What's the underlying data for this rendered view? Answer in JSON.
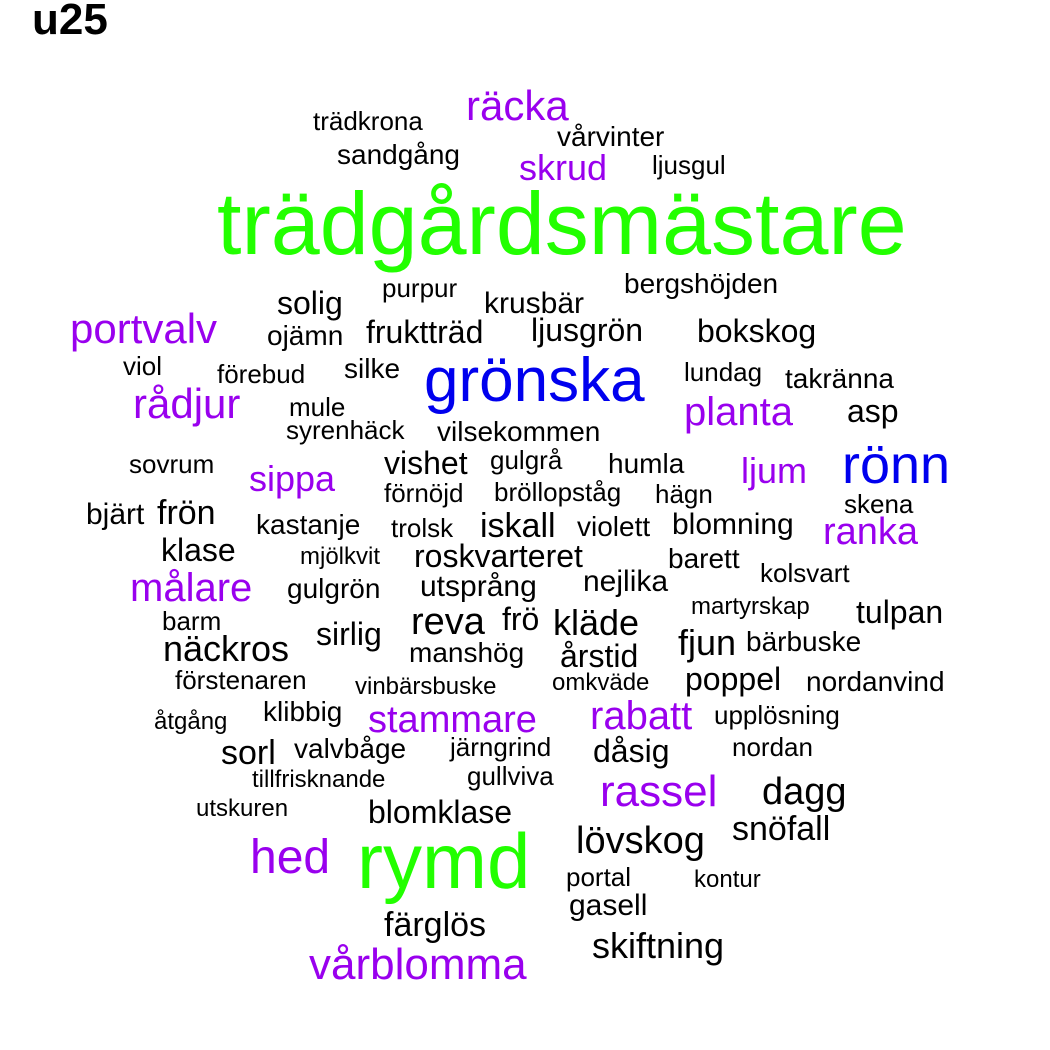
{
  "title": "u25",
  "colors": {
    "green": "#22ff00",
    "blue": "#0000ee",
    "purple": "#9900ee",
    "black": "#000000"
  },
  "words": [
    {
      "text": "trädgårdsmästare",
      "color": "green"
    },
    {
      "text": "rymd",
      "color": "green"
    },
    {
      "text": "grönska",
      "color": "blue"
    },
    {
      "text": "rönn",
      "color": "blue"
    },
    {
      "text": "räcka",
      "color": "purple"
    },
    {
      "text": "skrud",
      "color": "purple"
    },
    {
      "text": "portvalv",
      "color": "purple"
    },
    {
      "text": "rådjur",
      "color": "purple"
    },
    {
      "text": "planta",
      "color": "purple"
    },
    {
      "text": "sippa",
      "color": "purple"
    },
    {
      "text": "ljum",
      "color": "purple"
    },
    {
      "text": "ranka",
      "color": "purple"
    },
    {
      "text": "målare",
      "color": "purple"
    },
    {
      "text": "stammare",
      "color": "purple"
    },
    {
      "text": "rabatt",
      "color": "purple"
    },
    {
      "text": "rassel",
      "color": "purple"
    },
    {
      "text": "hed",
      "color": "purple"
    },
    {
      "text": "vårblomma",
      "color": "purple"
    },
    {
      "text": "trädkrona",
      "color": "black"
    },
    {
      "text": "vårvinter",
      "color": "black"
    },
    {
      "text": "sandgång",
      "color": "black"
    },
    {
      "text": "ljusgul",
      "color": "black"
    },
    {
      "text": "bergshöjden",
      "color": "black"
    },
    {
      "text": "purpur",
      "color": "black"
    },
    {
      "text": "solig",
      "color": "black"
    },
    {
      "text": "krusbär",
      "color": "black"
    },
    {
      "text": "ojämn",
      "color": "black"
    },
    {
      "text": "fruktträd",
      "color": "black"
    },
    {
      "text": "ljusgrön",
      "color": "black"
    },
    {
      "text": "bokskog",
      "color": "black"
    },
    {
      "text": "viol",
      "color": "black"
    },
    {
      "text": "förebud",
      "color": "black"
    },
    {
      "text": "silke",
      "color": "black"
    },
    {
      "text": "lundag",
      "color": "black"
    },
    {
      "text": "takränna",
      "color": "black"
    },
    {
      "text": "mule",
      "color": "black"
    },
    {
      "text": "asp",
      "color": "black"
    },
    {
      "text": "syrenhäck",
      "color": "black"
    },
    {
      "text": "vilsekommen",
      "color": "black"
    },
    {
      "text": "sovrum",
      "color": "black"
    },
    {
      "text": "vishet",
      "color": "black"
    },
    {
      "text": "gulgrå",
      "color": "black"
    },
    {
      "text": "humla",
      "color": "black"
    },
    {
      "text": "förnöjd",
      "color": "black"
    },
    {
      "text": "bröllopståg",
      "color": "black"
    },
    {
      "text": "hägn",
      "color": "black"
    },
    {
      "text": "skena",
      "color": "black"
    },
    {
      "text": "bjärt",
      "color": "black"
    },
    {
      "text": "frön",
      "color": "black"
    },
    {
      "text": "kastanje",
      "color": "black"
    },
    {
      "text": "trolsk",
      "color": "black"
    },
    {
      "text": "iskall",
      "color": "black"
    },
    {
      "text": "violett",
      "color": "black"
    },
    {
      "text": "blomning",
      "color": "black"
    },
    {
      "text": "klase",
      "color": "black"
    },
    {
      "text": "mjölkvit",
      "color": "black"
    },
    {
      "text": "roskvarteret",
      "color": "black"
    },
    {
      "text": "barett",
      "color": "black"
    },
    {
      "text": "kolsvart",
      "color": "black"
    },
    {
      "text": "gulgrön",
      "color": "black"
    },
    {
      "text": "utsprång",
      "color": "black"
    },
    {
      "text": "nejlika",
      "color": "black"
    },
    {
      "text": "martyrskap",
      "color": "black"
    },
    {
      "text": "tulpan",
      "color": "black"
    },
    {
      "text": "barm",
      "color": "black"
    },
    {
      "text": "reva",
      "color": "black"
    },
    {
      "text": "frö",
      "color": "black"
    },
    {
      "text": "kläde",
      "color": "black"
    },
    {
      "text": "sirlig",
      "color": "black"
    },
    {
      "text": "fjun",
      "color": "black"
    },
    {
      "text": "bärbuske",
      "color": "black"
    },
    {
      "text": "näckros",
      "color": "black"
    },
    {
      "text": "manshög",
      "color": "black"
    },
    {
      "text": "årstid",
      "color": "black"
    },
    {
      "text": "förstenaren",
      "color": "black"
    },
    {
      "text": "poppel",
      "color": "black"
    },
    {
      "text": "vinbärsbuske",
      "color": "black"
    },
    {
      "text": "omkväde",
      "color": "black"
    },
    {
      "text": "nordanvind",
      "color": "black"
    },
    {
      "text": "klibbig",
      "color": "black"
    },
    {
      "text": "upplösning",
      "color": "black"
    },
    {
      "text": "åtgång",
      "color": "black"
    },
    {
      "text": "sorl",
      "color": "black"
    },
    {
      "text": "valvbåge",
      "color": "black"
    },
    {
      "text": "järngrind",
      "color": "black"
    },
    {
      "text": "dåsig",
      "color": "black"
    },
    {
      "text": "nordan",
      "color": "black"
    },
    {
      "text": "tillfrisknande",
      "color": "black"
    },
    {
      "text": "gullviva",
      "color": "black"
    },
    {
      "text": "dagg",
      "color": "black"
    },
    {
      "text": "utskuren",
      "color": "black"
    },
    {
      "text": "blomklase",
      "color": "black"
    },
    {
      "text": "snöfall",
      "color": "black"
    },
    {
      "text": "lövskog",
      "color": "black"
    },
    {
      "text": "portal",
      "color": "black"
    },
    {
      "text": "kontur",
      "color": "black"
    },
    {
      "text": "gasell",
      "color": "black"
    },
    {
      "text": "färglös",
      "color": "black"
    },
    {
      "text": "skiftning",
      "color": "black"
    }
  ]
}
